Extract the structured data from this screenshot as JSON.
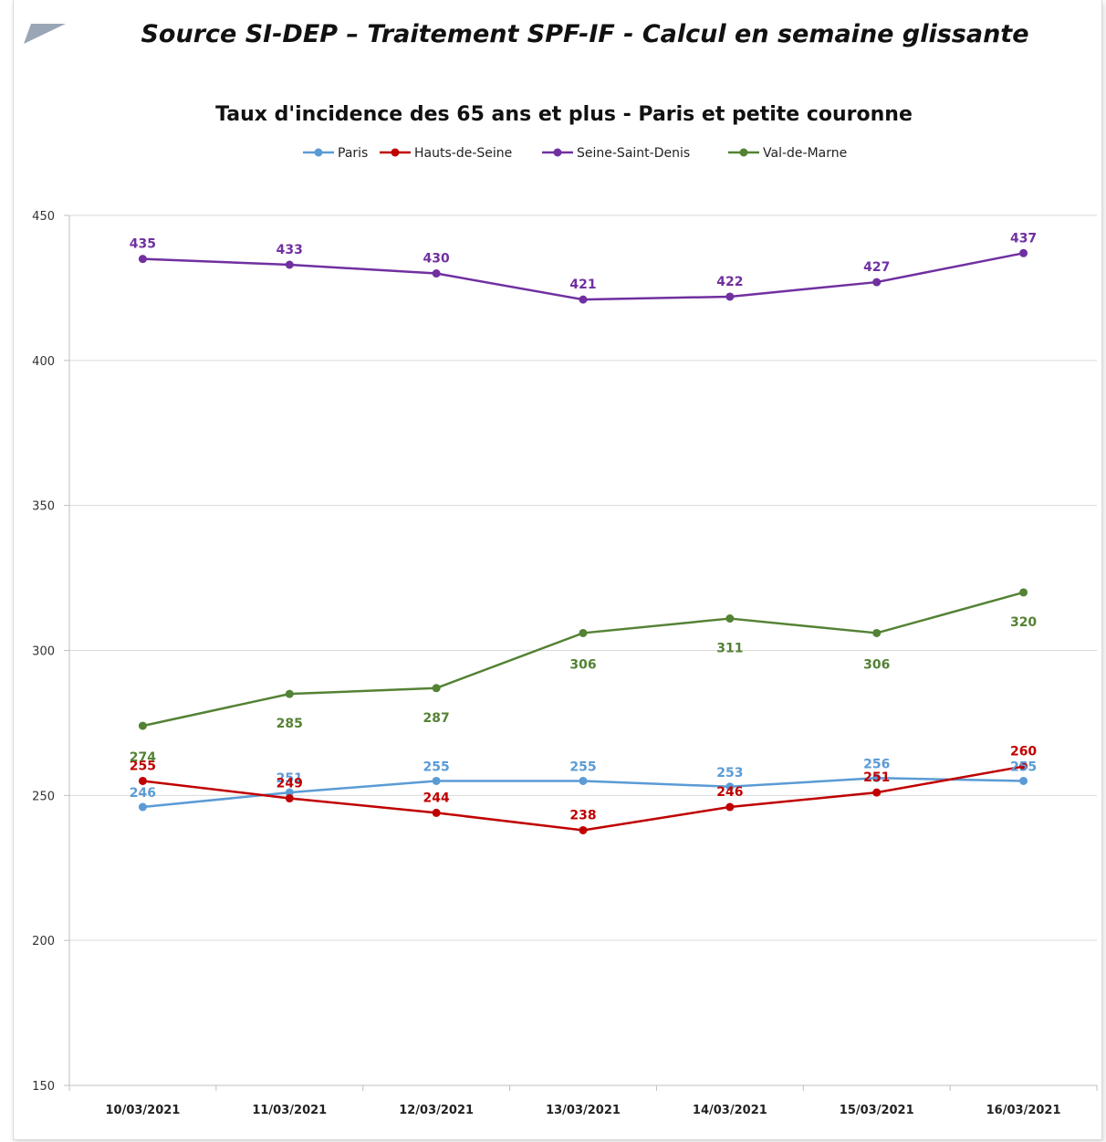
{
  "header": {
    "source_title": "Source SI-DEP – Traitement SPF-IF - Calcul en semaine glissante"
  },
  "colors": {
    "Paris": "#5b9bd5",
    "Hauts-de-Seine": "#c00000",
    "Seine-Saint-Denis": "#7030a0",
    "Val-de-Marne": "#548235",
    "grid": "#d9d9d9",
    "axis": "#bfbfbf"
  },
  "chart_data": {
    "type": "line",
    "title": "Taux d'incidence des 65 ans et plus - Paris et petite couronne",
    "xlabel": "",
    "ylabel": "",
    "categories": [
      "10/03/2021",
      "11/03/2021",
      "12/03/2021",
      "13/03/2021",
      "14/03/2021",
      "15/03/2021",
      "16/03/2021"
    ],
    "ylim": [
      150,
      450
    ],
    "yticks": [
      150,
      200,
      250,
      300,
      350,
      400,
      450
    ],
    "grid": true,
    "legend_position": "top",
    "series": [
      {
        "name": "Paris",
        "values": [
          246,
          251,
          255,
          255,
          253,
          256,
          255
        ]
      },
      {
        "name": "Hauts-de-Seine",
        "values": [
          255,
          249,
          244,
          238,
          246,
          251,
          260
        ]
      },
      {
        "name": "Seine-Saint-Denis",
        "values": [
          435,
          433,
          430,
          421,
          422,
          427,
          437
        ]
      },
      {
        "name": "Val-de-Marne",
        "values": [
          274,
          285,
          287,
          306,
          311,
          306,
          320
        ]
      }
    ]
  }
}
